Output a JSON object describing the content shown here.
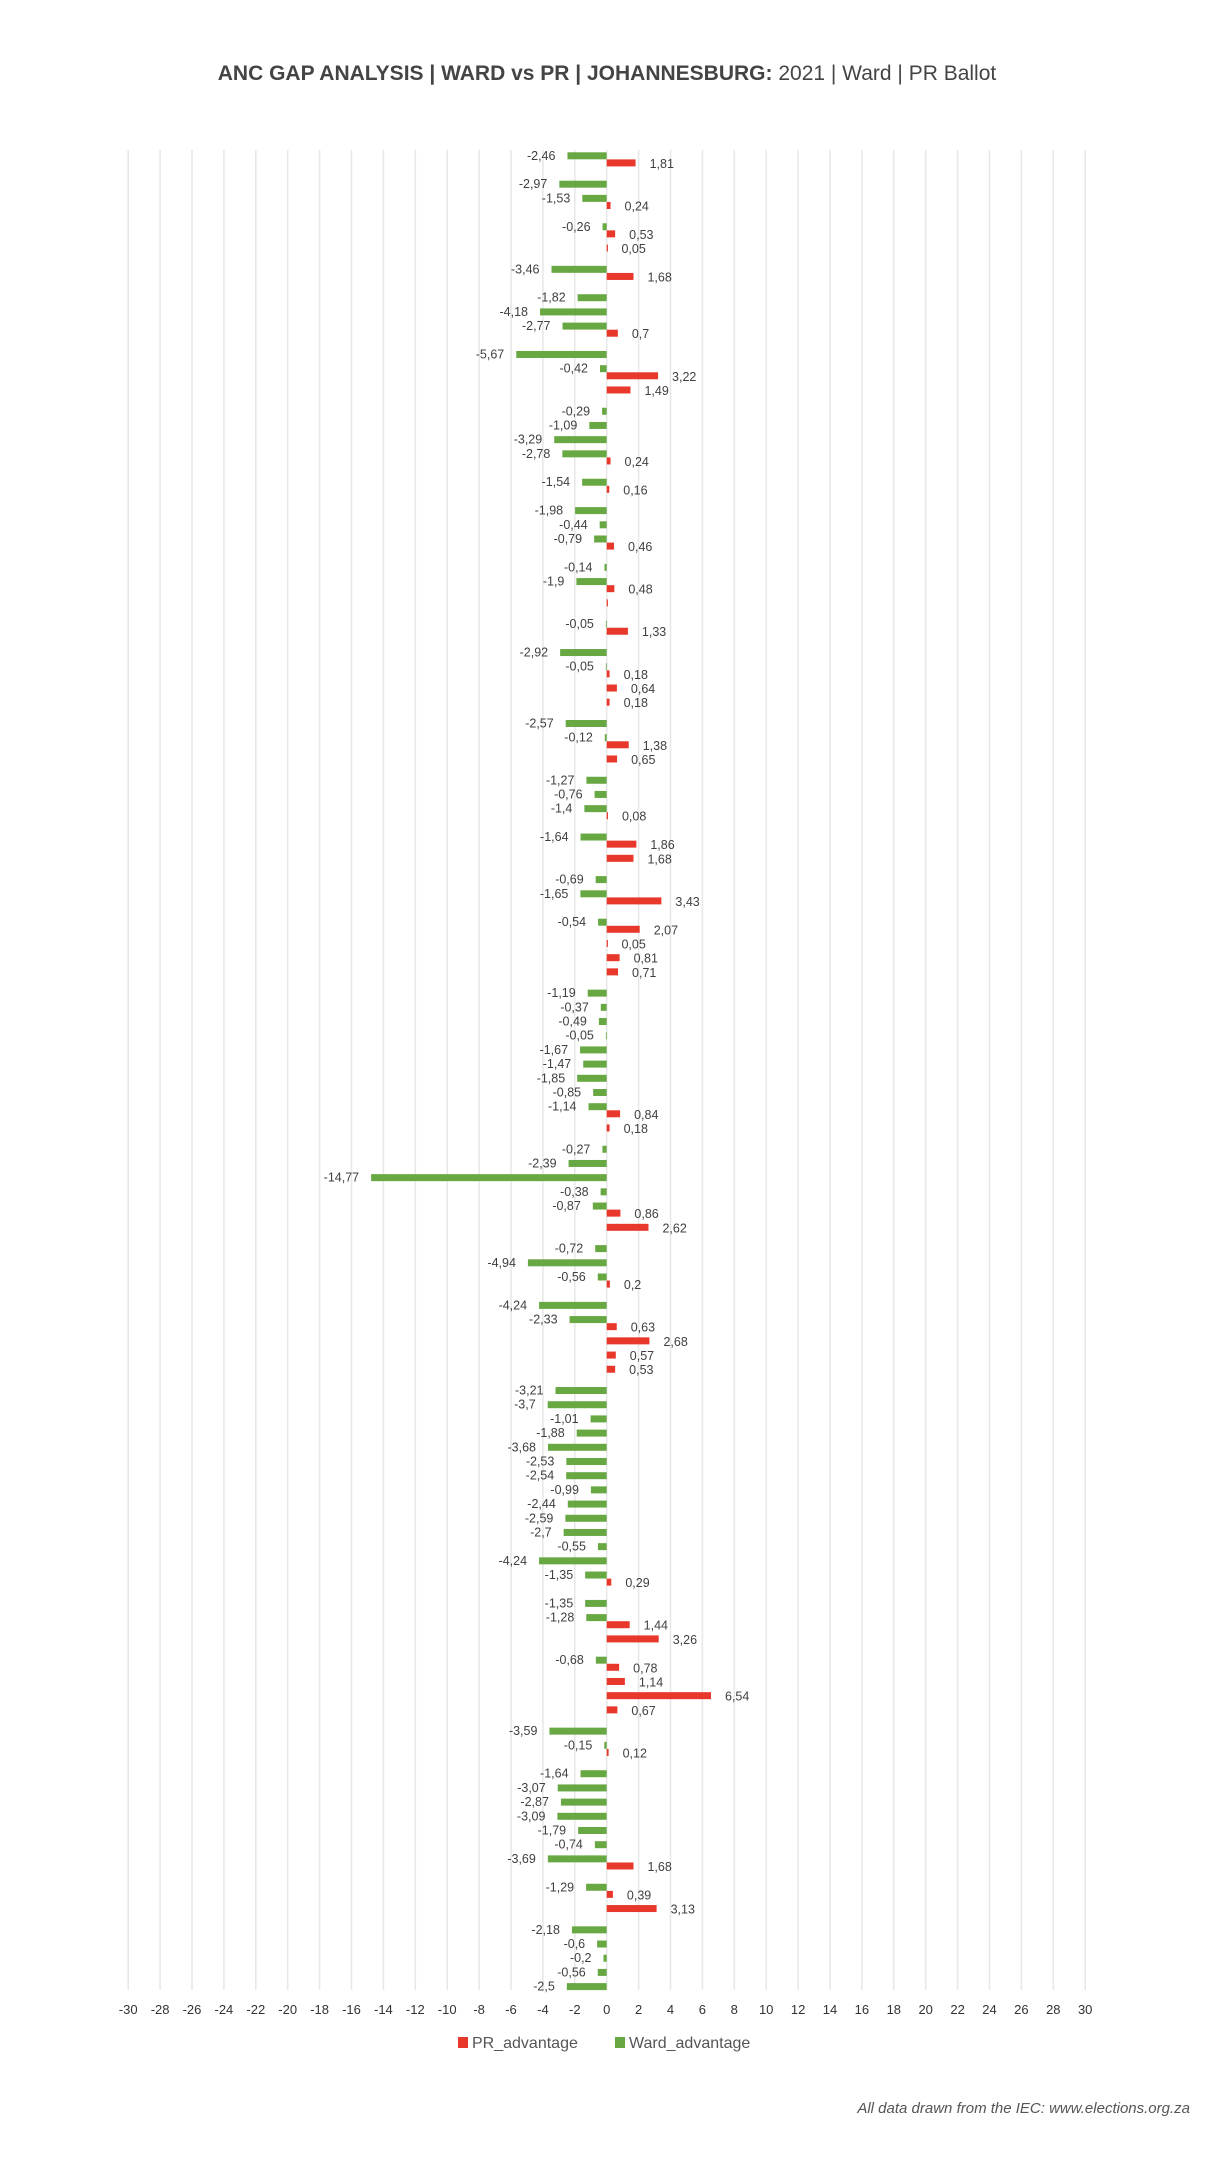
{
  "header": {
    "title_bold": "ANC GAP ANALYSIS | WARD vs PR | JOHANNESBURG:",
    "title_rest": " 2021 | Ward | PR Ballot"
  },
  "footer": {
    "source": "All data drawn from the IEC: www.elections.org.za"
  },
  "colors": {
    "pr": "#E8372B",
    "ward": "#68A843",
    "grid": "#E8E8E8"
  },
  "chart_data": {
    "type": "bar",
    "orientation": "horizontal",
    "title": "ANC GAP ANALYSIS | WARD vs PR | JOHANNESBURG: 2021 | Ward | PR Ballot",
    "xlabel": "",
    "ylabel": "",
    "xlim": [
      -30,
      30
    ],
    "xticks": [
      -30,
      -28,
      -26,
      -24,
      -22,
      -20,
      -18,
      -16,
      -14,
      -12,
      -10,
      -8,
      -6,
      -4,
      -2,
      0,
      2,
      4,
      6,
      8,
      10,
      12,
      14,
      16,
      18,
      20,
      22,
      24,
      26,
      28,
      30
    ],
    "grid": true,
    "legend_position": "bottom",
    "decimal_separator": ",",
    "category_count": 130,
    "series": [
      {
        "name": "PR_advantage",
        "color": "#E8372B",
        "values": [
          1.81,
          null,
          null,
          0.24,
          null,
          0.53,
          0.05,
          null,
          1.68,
          null,
          null,
          null,
          0.7,
          null,
          null,
          3.22,
          1.49,
          null,
          null,
          null,
          null,
          0.24,
          null,
          0.16,
          null,
          null,
          null,
          0.46,
          null,
          null,
          0.48,
          0.02,
          null,
          1.33,
          null,
          null,
          0.18,
          0.64,
          0.18,
          null,
          null,
          1.38,
          0.65,
          null,
          null,
          null,
          0.08,
          null,
          1.86,
          1.68,
          null,
          null,
          3.43,
          null,
          2.07,
          0.05,
          0.81,
          0.71,
          null,
          null,
          null,
          null,
          null,
          null,
          null,
          null,
          null,
          0.84,
          0.18,
          null,
          null,
          null,
          null,
          null,
          0.86,
          2.62,
          null,
          null,
          null,
          0.2,
          null,
          null,
          0.63,
          2.68,
          0.57,
          0.53,
          null,
          null,
          null,
          null,
          null,
          null,
          null,
          null,
          null,
          null,
          null,
          null,
          null,
          null,
          0.29,
          null,
          null,
          1.44,
          3.26,
          null,
          0.78,
          1.14,
          6.54,
          0.67,
          null,
          null,
          0.12,
          null,
          null,
          null,
          null,
          null,
          null,
          null,
          1.68,
          null,
          0.39,
          3.13,
          null,
          null,
          null,
          null,
          null,
          null
        ]
      },
      {
        "name": "Ward_advantage",
        "color": "#68A843",
        "values": [
          -2.46,
          null,
          -2.97,
          -1.53,
          null,
          -0.26,
          null,
          null,
          -3.46,
          null,
          -1.82,
          -4.18,
          -2.77,
          null,
          -5.67,
          -0.42,
          null,
          null,
          -0.29,
          -1.09,
          -3.29,
          -2.78,
          null,
          -1.54,
          null,
          -1.98,
          -0.44,
          -0.79,
          null,
          -0.14,
          -1.9,
          null,
          null,
          -0.05,
          null,
          -2.92,
          -0.05,
          null,
          null,
          null,
          -2.57,
          -0.12,
          null,
          null,
          -1.27,
          -0.76,
          -1.4,
          null,
          -1.64,
          null,
          null,
          -0.69,
          -1.65,
          null,
          -0.54,
          null,
          null,
          null,
          null,
          -1.19,
          -0.37,
          -0.49,
          -0.05,
          -1.67,
          -1.47,
          -1.85,
          -0.85,
          -1.14,
          null,
          null,
          -0.27,
          -2.39,
          -14.77,
          -0.38,
          -0.87,
          null,
          null,
          -0.72,
          -4.94,
          -0.56,
          null,
          -4.24,
          -2.33,
          null,
          null,
          null,
          null,
          -3.21,
          -3.7,
          -1.01,
          -1.88,
          -3.68,
          -2.53,
          -2.54,
          -0.99,
          -2.44,
          -2.59,
          -2.7,
          -0.55,
          -4.24,
          -1.35,
          null,
          -1.35,
          -1.28,
          null,
          null,
          -0.68,
          null,
          null,
          null,
          null,
          -3.59,
          -0.15,
          null,
          -1.64,
          -3.07,
          -2.87,
          -3.09,
          -1.79,
          -0.74,
          -3.69,
          null,
          -1.29,
          null,
          null,
          -2.18,
          -0.6,
          -0.2,
          -0.56,
          -2.5
        ]
      }
    ],
    "legend": [
      "PR_advantage",
      "Ward_advantage"
    ]
  }
}
